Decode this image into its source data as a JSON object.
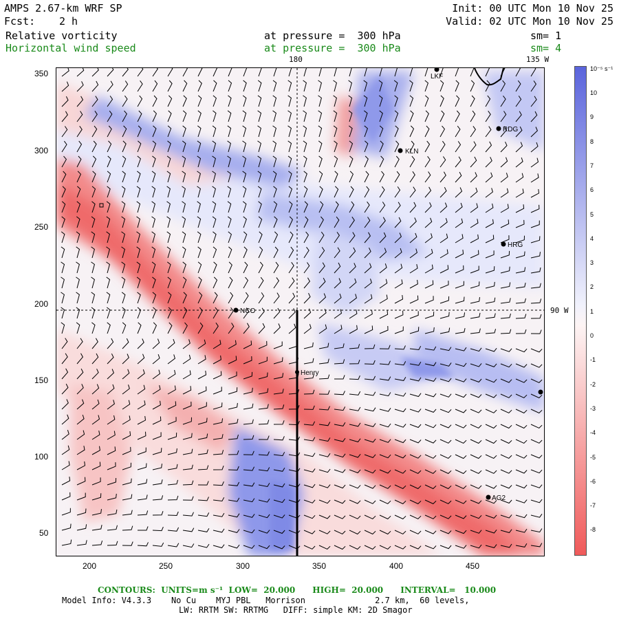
{
  "header": {
    "model": "AMPS 2.67-km WRF SP",
    "fcst_label": "Fcst:",
    "fcst_value": "2 h",
    "init": "Init: 00 UTC Mon 10 Nov 25",
    "valid": "Valid: 02 UTC Mon 10 Nov 25"
  },
  "fields": {
    "shaded_name": "Relative vorticity",
    "shaded_level": "at pressure =  300 hPa",
    "shaded_sm": "sm= 1",
    "contour_name": "Horizontal wind speed",
    "contour_level": "at pressure =  300 hPa",
    "contour_sm": "sm= 4"
  },
  "map": {
    "top_labels": [
      "180",
      "135 W"
    ],
    "right_label": "90 W",
    "x_ticks": [
      "200",
      "250",
      "300",
      "350",
      "400",
      "450"
    ],
    "y_ticks": [
      "350",
      "300",
      "250",
      "200",
      "150",
      "100",
      "50"
    ],
    "stations": [
      "LKF",
      "RDG",
      "KLN",
      "HRG",
      "NCO",
      "Henry",
      "AG2"
    ]
  },
  "colorbar": {
    "units": "10⁻⁵ s⁻¹",
    "labels": [
      "10",
      "9",
      "8",
      "7",
      "6",
      "5",
      "4",
      "3",
      "2",
      "1",
      "0",
      "-1",
      "-2",
      "-3",
      "-4",
      "-5",
      "-6",
      "-7",
      "-8"
    ],
    "positive_color": "#5a64dc",
    "negative_color": "#f05a5a"
  },
  "footer": {
    "contours": "CONTOURS:  UNITS=m s⁻¹  LOW=  20.000      HIGH=  20.000      INTERVAL=   10.000",
    "model_info": "Model Info: V4.3.3    No Cu    MYJ PBL   Morrison              2.7 km,  60 levels,",
    "model_info2": "LW: RRTM SW: RRTMG   DIFF: simple KM: 2D Smagor"
  }
}
